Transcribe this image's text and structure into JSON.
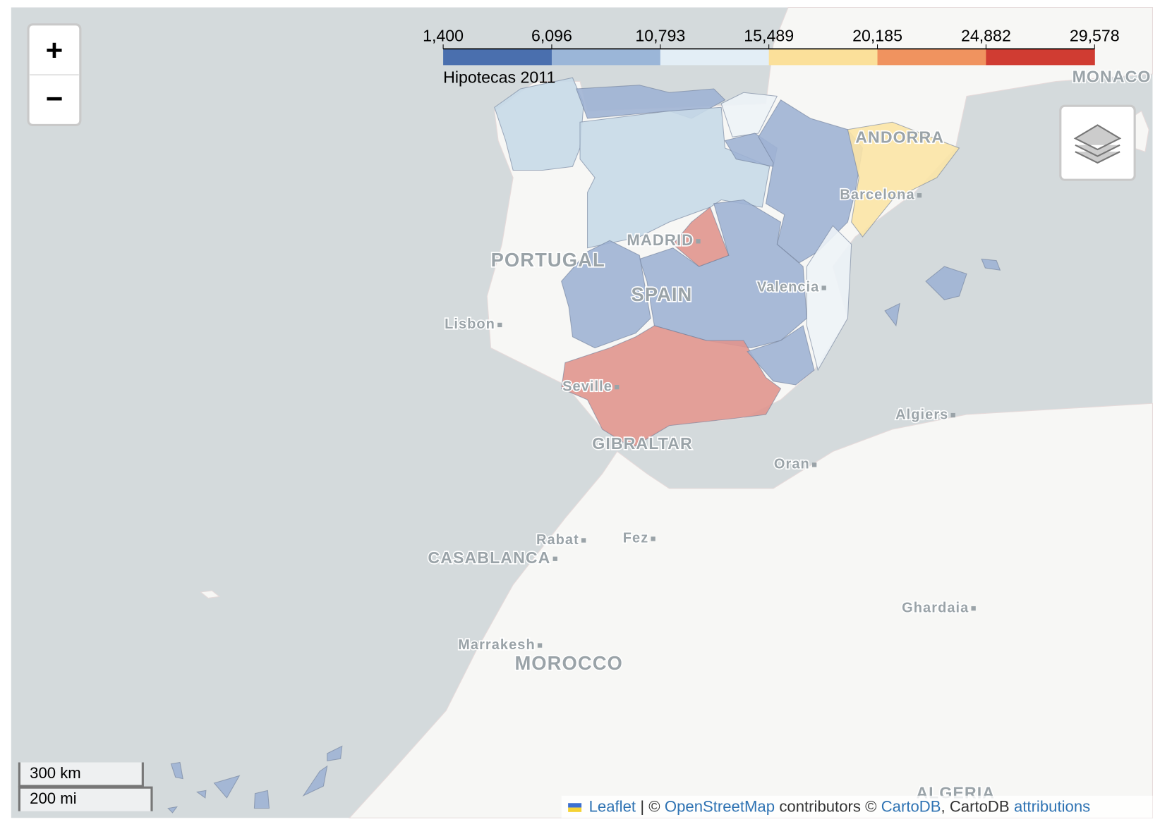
{
  "legend": {
    "title": "Hipotecas 2011",
    "ticks": [
      {
        "value": 1400,
        "label": "1,400"
      },
      {
        "value": 6096,
        "label": "6,096"
      },
      {
        "value": 10793,
        "label": "10,793"
      },
      {
        "value": 15489,
        "label": "15,489"
      },
      {
        "value": 20185,
        "label": "20,185"
      },
      {
        "value": 24882,
        "label": "24,882"
      },
      {
        "value": 29578,
        "label": "29,578"
      }
    ],
    "colors": [
      "#4a6fae",
      "#9bb6d8",
      "#e3eef6",
      "#fbe09a",
      "#f0935f",
      "#d03c32"
    ]
  },
  "controls": {
    "zoom_in": "+",
    "zoom_out": "−"
  },
  "scale": {
    "metric": "300 km",
    "imperial": "200 mi"
  },
  "map_labels": [
    "PORTUGAL",
    "SPAIN",
    "MADRID",
    "Lisbon",
    "Seville",
    "Valencia",
    "Barcelona",
    "ANDORRA",
    "MONACO",
    "GIBRALTAR",
    "Oran",
    "Algiers",
    "Rabat",
    "Fez",
    "CASABLANCA",
    "Marrakesh",
    "MOROCCO",
    "Ghardaia",
    "ALGERIA"
  ],
  "attribution": {
    "leaflet": "Leaflet",
    "sep": "| ©",
    "osm": "OpenStreetMap",
    "contributors": "contributors ©",
    "cartodb": "CartoDB",
    "cartodb2": ", CartoDB",
    "attributions": "attributions"
  }
}
